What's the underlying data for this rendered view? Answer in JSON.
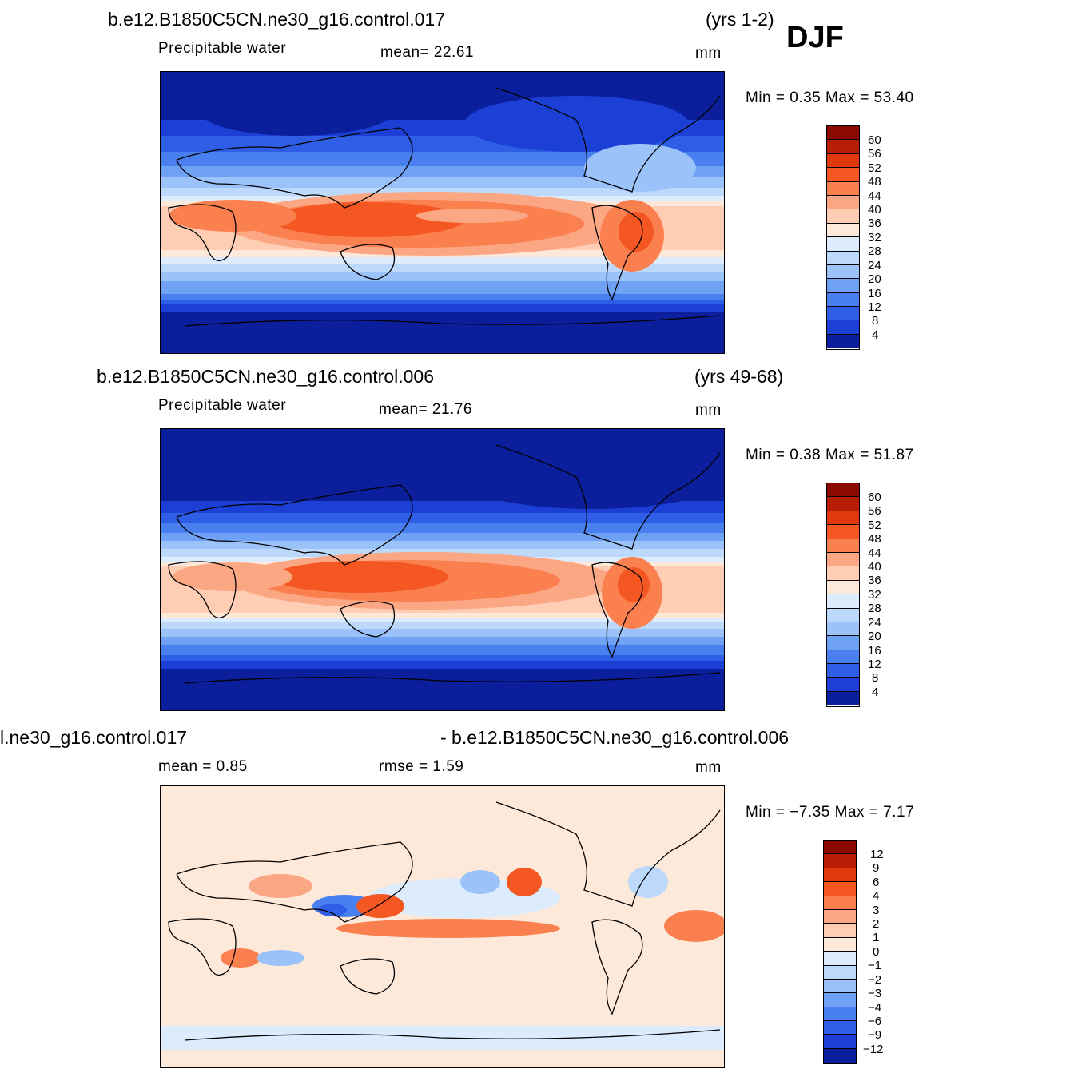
{
  "season": "DJF",
  "panels": [
    {
      "case": "b.e12.B1850C5CN.ne30_g16.control.017",
      "years": "(yrs 1-2)",
      "left_label": "Precipitable  water",
      "center_label": "mean=   22.61",
      "units": "mm",
      "minmax": "Min =     0.35  Max =    53.40",
      "levels": [
        "60",
        "56",
        "52",
        "48",
        "44",
        "40",
        "36",
        "32",
        "28",
        "24",
        "20",
        "16",
        "12",
        "8",
        "4"
      ]
    },
    {
      "case": "b.e12.B1850C5CN.ne30_g16.control.006",
      "years": "(yrs 49-68)",
      "left_label": "Precipitable  water",
      "center_label": "mean=   21.76",
      "units": "mm",
      "minmax": "Min =     0.38  Max =    51.87",
      "levels": [
        "60",
        "56",
        "52",
        "48",
        "44",
        "40",
        "36",
        "32",
        "28",
        "24",
        "20",
        "16",
        "12",
        "8",
        "4"
      ]
    },
    {
      "case": "l.ne30_g16.control.017",
      "diff_case": "- b.e12.B1850C5CN.ne30_g16.control.006",
      "left_label": "mean  =     0.85",
      "center_label": "rmse  =     1.59",
      "units": "mm",
      "minmax": "Min =   −7.35  Max =      7.17",
      "levels": [
        "12",
        "9",
        "6",
        "4",
        "3",
        "2",
        "1",
        "0",
        "−1",
        "−2",
        "−3",
        "−4",
        "−6",
        "−9",
        "−12"
      ]
    }
  ],
  "colors": {
    "sequential": [
      "#8b0a00",
      "#b81d05",
      "#e03a0c",
      "#f55722",
      "#fa8050",
      "#fca784",
      "#fecdb4",
      "#fde9da",
      "#dcecfd",
      "#bcd8fb",
      "#9cc2fa",
      "#6fa1f4",
      "#4a7ff0",
      "#2e5ee6",
      "#1c40d6",
      "#0b1e9b"
    ],
    "ocean": "#0b1e9b"
  }
}
